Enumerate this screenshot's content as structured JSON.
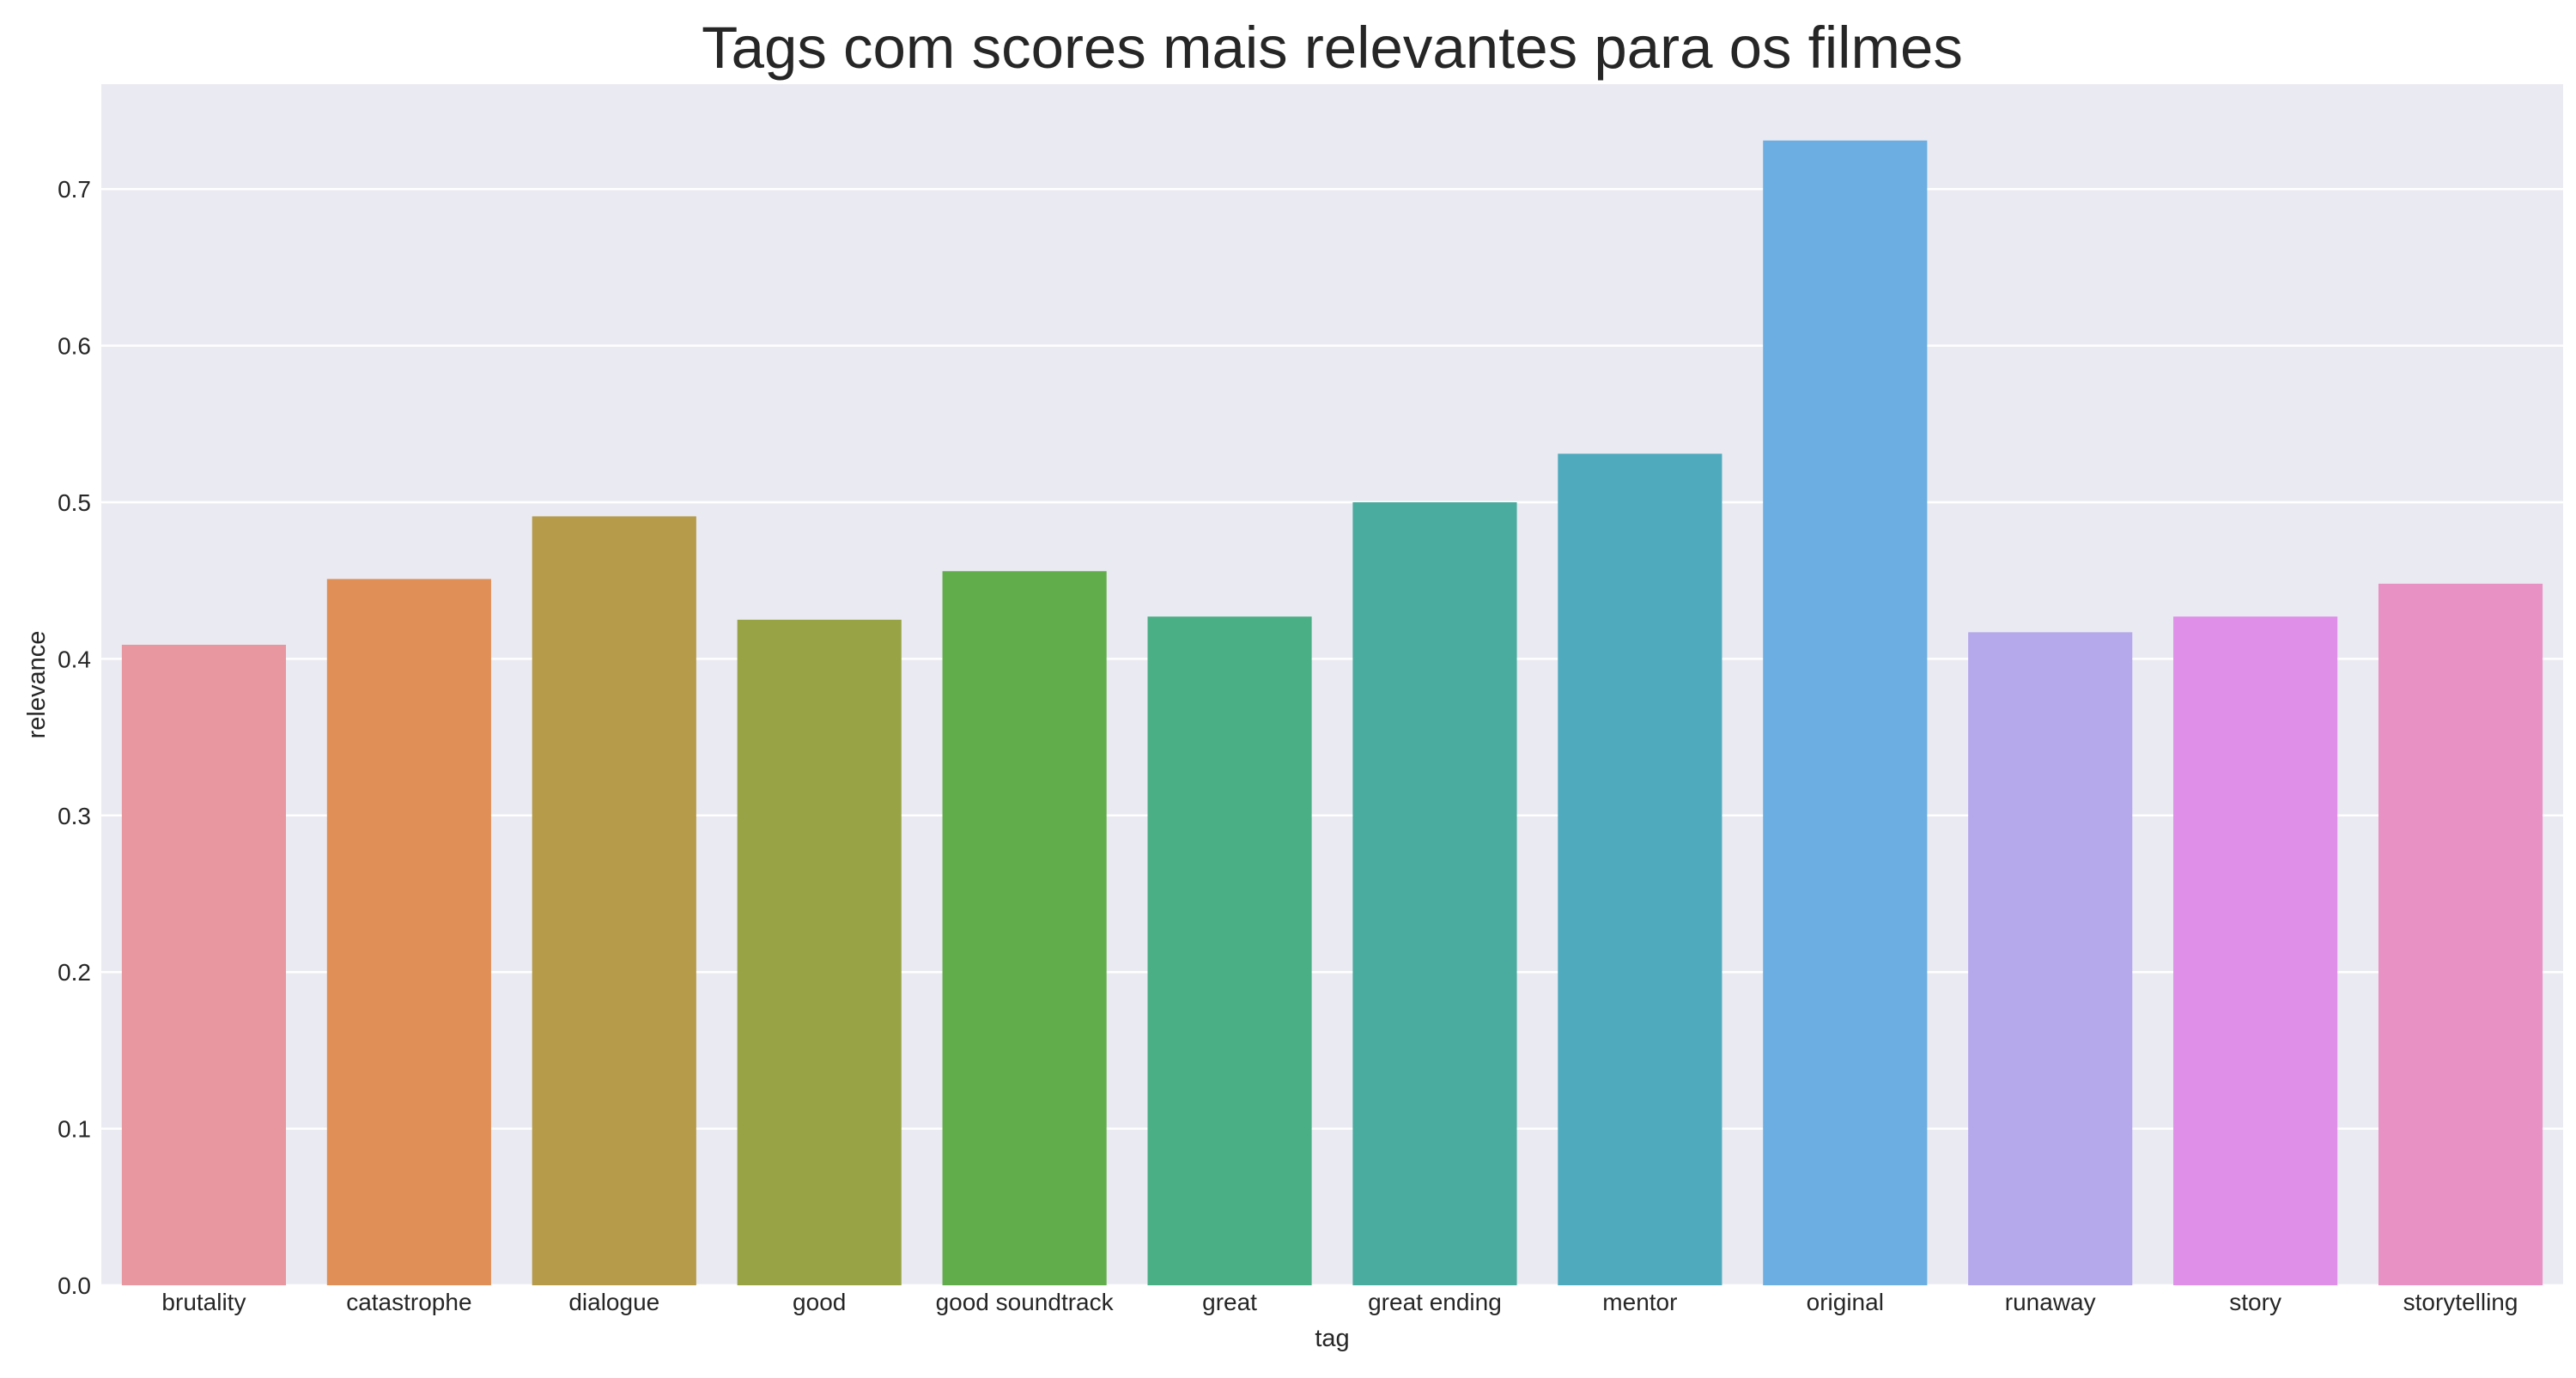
{
  "chart_data": {
    "type": "bar",
    "title": "Tags com scores mais relevantes para os filmes",
    "xlabel": "tag",
    "ylabel": "relevance",
    "categories": [
      "brutality",
      "catastrophe",
      "dialogue",
      "good",
      "good soundtrack",
      "great",
      "great ending",
      "mentor",
      "original",
      "runaway",
      "story",
      "storytelling"
    ],
    "values": [
      0.409,
      0.451,
      0.491,
      0.425,
      0.456,
      0.427,
      0.5,
      0.531,
      0.731,
      0.417,
      0.427,
      0.448
    ],
    "colors": [
      "#e8969f",
      "#e09056",
      "#b59b4a",
      "#98a346",
      "#62ad4b",
      "#4baf86",
      "#4aab9f",
      "#4faabd",
      "#6caee2",
      "#b5a8eb",
      "#df8fe8",
      "#e891c4"
    ],
    "ylim": [
      0,
      0.767
    ],
    "yticks": [
      0.0,
      0.1,
      0.2,
      0.3,
      0.4,
      0.5,
      0.6,
      0.7
    ],
    "ytick_labels": [
      "0.0",
      "0.1",
      "0.2",
      "0.3",
      "0.4",
      "0.5",
      "0.6",
      "0.7"
    ],
    "grid": true,
    "plot_background": "#eaeaf2",
    "gridline_color": "#ffffff"
  }
}
